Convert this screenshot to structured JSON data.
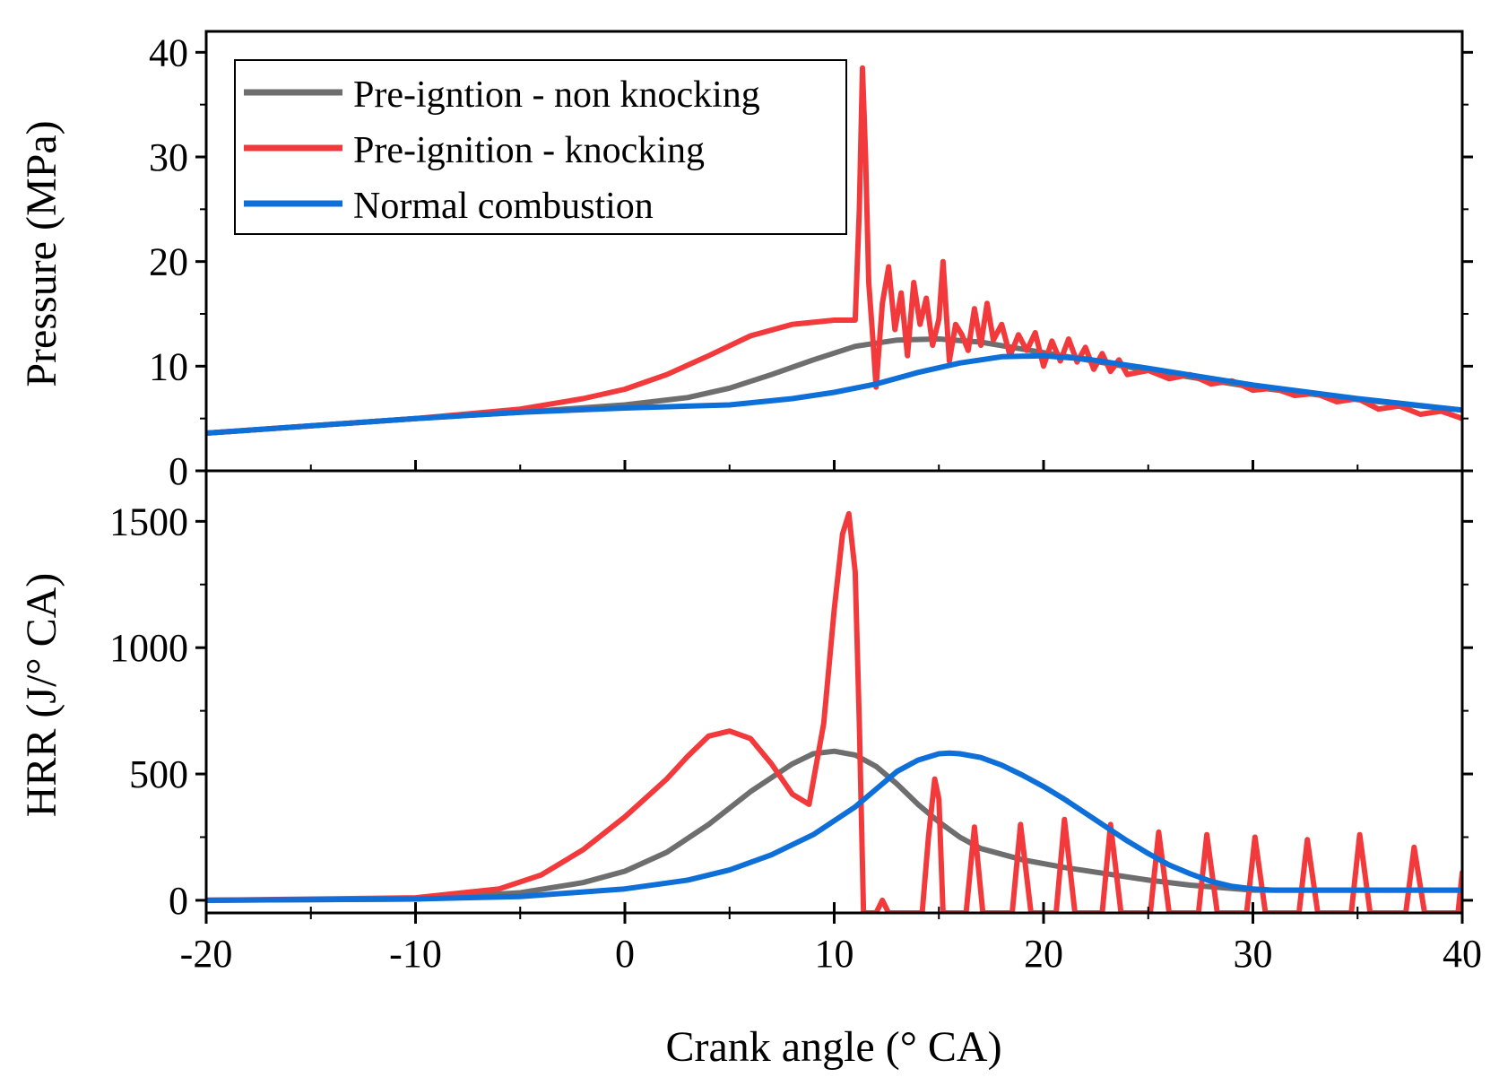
{
  "chart_data": [
    {
      "type": "line",
      "title": "",
      "xlabel": "",
      "ylabel": "Pressure (MPa)",
      "xlim": [
        -20,
        40
      ],
      "ylim": [
        0,
        42
      ],
      "yticks": [
        0,
        10,
        20,
        30,
        40
      ],
      "grid": false,
      "legend": {
        "position": "top-left",
        "entries": [
          "Pre-igntion - non knocking",
          "Pre-ignition - knocking",
          "Normal combustion"
        ]
      },
      "series": [
        {
          "name": "Pre-igntion - non knocking",
          "color": "#6e6e6e",
          "x": [
            -20,
            -10,
            -5,
            0,
            3,
            5,
            7,
            9,
            11,
            13,
            15,
            17,
            20,
            25,
            30,
            35,
            40
          ],
          "y": [
            3.6,
            5.0,
            5.6,
            6.3,
            7.0,
            7.9,
            9.2,
            10.6,
            11.9,
            12.5,
            12.6,
            12.3,
            11.3,
            9.6,
            8.0,
            6.8,
            5.8
          ]
        },
        {
          "name": "Pre-ignition - knocking",
          "color": "#f23a3c",
          "x": [
            -20,
            -10,
            -5,
            -2,
            0,
            2,
            4,
            6,
            8,
            10,
            11,
            11.2,
            11.35,
            11.5,
            11.65,
            11.85,
            12.0,
            12.3,
            12.6,
            12.9,
            13.2,
            13.5,
            13.8,
            14.1,
            14.4,
            14.7,
            15.0,
            15.2,
            15.5,
            15.8,
            16.1,
            16.4,
            16.7,
            17.0,
            17.3,
            17.6,
            18.0,
            18.4,
            18.8,
            19.2,
            19.6,
            20.0,
            20.4,
            20.8,
            21.2,
            21.6,
            22.0,
            22.4,
            22.8,
            23.2,
            23.6,
            24.0,
            25.0,
            26.0,
            27.0,
            28.0,
            29.0,
            30.0,
            31.0,
            32.0,
            33.0,
            34.0,
            35.0,
            36.0,
            37.0,
            38.0,
            39.0,
            40.0
          ],
          "y": [
            3.6,
            5.0,
            5.9,
            6.9,
            7.8,
            9.2,
            11.0,
            12.9,
            14.0,
            14.4,
            14.4,
            25.0,
            38.5,
            30.0,
            18.0,
            12.5,
            8.0,
            16.0,
            19.5,
            13.5,
            17.0,
            11.0,
            18.0,
            14.0,
            16.5,
            12.0,
            14.5,
            20.0,
            10.5,
            14.0,
            13.0,
            11.5,
            15.5,
            12.0,
            16.0,
            12.5,
            14.0,
            11.0,
            13.0,
            11.5,
            13.2,
            10.0,
            12.4,
            10.5,
            12.6,
            10.4,
            11.8,
            9.7,
            11.2,
            9.5,
            10.6,
            9.2,
            9.6,
            8.8,
            9.2,
            8.3,
            8.6,
            7.7,
            7.9,
            7.2,
            7.4,
            6.6,
            6.9,
            5.9,
            6.2,
            5.4,
            5.7,
            5.0
          ]
        },
        {
          "name": "Normal combustion",
          "color": "#0e6fd8",
          "x": [
            -20,
            -10,
            -5,
            0,
            5,
            8,
            10,
            12,
            14,
            16,
            18,
            20,
            22,
            25,
            30,
            35,
            40
          ],
          "y": [
            3.6,
            5.0,
            5.6,
            6.0,
            6.3,
            6.9,
            7.5,
            8.3,
            9.4,
            10.3,
            10.9,
            11.0,
            10.7,
            9.8,
            8.2,
            6.9,
            5.8
          ]
        }
      ]
    },
    {
      "type": "line",
      "title": "",
      "xlabel": "Crank angle (° CA)",
      "ylabel": "HRR (J/° CA)",
      "xlim": [
        -20,
        40
      ],
      "ylim": [
        -50,
        1700
      ],
      "xticks": [
        -20,
        -10,
        0,
        10,
        20,
        30,
        40
      ],
      "yticks": [
        0,
        500,
        1000,
        1500
      ],
      "grid": false,
      "series": [
        {
          "name": "Pre-igntion - non knocking",
          "color": "#6e6e6e",
          "x": [
            -20,
            -10,
            -5,
            -2,
            0,
            2,
            4,
            6,
            8,
            9,
            10,
            11,
            12,
            13,
            14,
            15,
            16,
            17,
            19,
            21,
            23,
            25,
            27,
            30,
            35,
            40
          ],
          "y": [
            0,
            5,
            30,
            70,
            115,
            190,
            300,
            430,
            540,
            580,
            590,
            575,
            530,
            460,
            380,
            310,
            250,
            205,
            160,
            130,
            105,
            80,
            60,
            40,
            40,
            40
          ]
        },
        {
          "name": "Pre-ignition - knocking",
          "color": "#f23a3c",
          "x": [
            -20,
            -10,
            -6,
            -4,
            -2,
            0,
            2,
            3,
            4,
            5,
            6,
            7,
            8,
            8.8,
            9.5,
            10.0,
            10.4,
            10.7,
            11.0,
            11.2,
            11.4,
            12.0,
            12.3,
            12.6,
            14.2,
            14.5,
            14.8,
            15.0,
            15.2,
            16.3,
            16.7,
            17.1,
            18.5,
            18.9,
            19.4,
            20.6,
            21.0,
            21.5,
            22.8,
            23.2,
            23.7,
            25.1,
            25.5,
            26.0,
            27.4,
            27.8,
            28.3,
            29.7,
            30.1,
            30.6,
            32.2,
            32.6,
            33.1,
            34.7,
            35.1,
            35.6,
            37.3,
            37.7,
            38.2,
            39.8,
            40.0
          ],
          "y": [
            0,
            10,
            45,
            100,
            200,
            330,
            480,
            570,
            650,
            670,
            640,
            540,
            420,
            380,
            700,
            1150,
            1450,
            1530,
            1300,
            700,
            -50,
            -50,
            0,
            -50,
            -50,
            250,
            480,
            400,
            -50,
            -50,
            290,
            -50,
            -50,
            300,
            -50,
            -50,
            320,
            -50,
            -50,
            300,
            -50,
            -50,
            270,
            -50,
            -50,
            260,
            -50,
            -50,
            250,
            -50,
            -50,
            240,
            -50,
            -50,
            260,
            -50,
            -50,
            210,
            -50,
            -50,
            110
          ]
        },
        {
          "name": "Normal combustion",
          "color": "#0e6fd8",
          "x": [
            -20,
            -10,
            -5,
            0,
            3,
            5,
            7,
            9,
            11,
            12,
            13,
            14,
            15,
            15.5,
            16,
            17,
            18,
            19,
            20,
            21,
            22,
            23,
            24,
            25,
            26,
            27,
            28,
            29,
            30,
            31,
            35,
            40
          ],
          "y": [
            0,
            5,
            15,
            45,
            80,
            120,
            180,
            260,
            370,
            440,
            510,
            555,
            580,
            583,
            580,
            565,
            535,
            495,
            450,
            400,
            345,
            290,
            235,
            185,
            140,
            105,
            75,
            55,
            45,
            40,
            40,
            40
          ]
        }
      ]
    }
  ]
}
